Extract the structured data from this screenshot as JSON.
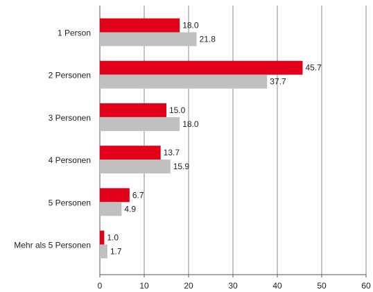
{
  "chart_data": {
    "type": "bar",
    "orientation": "horizontal",
    "title": "",
    "xlabel": "",
    "ylabel": "",
    "categories": [
      "1 Person",
      "2 Personen",
      "3 Personen",
      "4 Personen",
      "5 Personen",
      "Mehr als 5 Personen"
    ],
    "series": [
      {
        "color": "#e3001b",
        "values": [
          18.0,
          45.7,
          15.0,
          13.7,
          6.7,
          1.0
        ],
        "value_labels": [
          "18.0",
          "45.7",
          "15.0",
          "13.7",
          "6.7",
          "1.0"
        ]
      },
      {
        "color": "#c0c0c0",
        "values": [
          21.8,
          37.7,
          18.0,
          15.9,
          4.9,
          1.7
        ],
        "value_labels": [
          "21.8",
          "37.7",
          "18.0",
          "15.9",
          "4.9",
          "1.7"
        ]
      }
    ],
    "xlim": [
      0,
      60
    ],
    "xticks": [
      "0",
      "10",
      "20",
      "30",
      "40",
      "50",
      "60"
    ],
    "grid": "vertical",
    "legend": "none"
  }
}
